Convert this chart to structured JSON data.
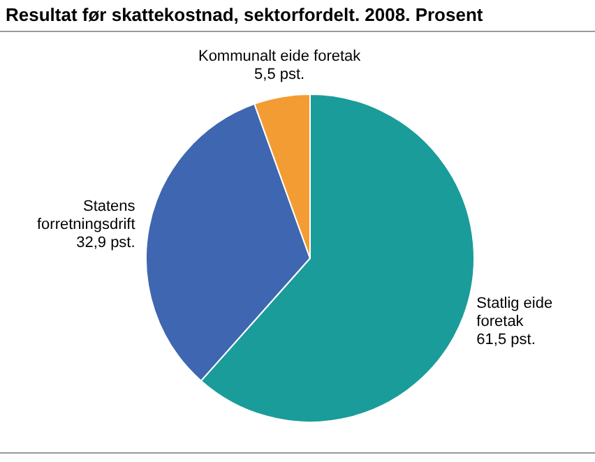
{
  "chart_data": {
    "type": "pie",
    "title": "Resultat før skattekostnad, sektorfordelt. 2008. Prosent",
    "categories": [
      "Statlig eide foretak",
      "Statens forretningsdrift",
      "Kommunalt eide foretak"
    ],
    "values": [
      61.5,
      32.9,
      5.5
    ],
    "colors": [
      "#1a9c9a",
      "#3f66b0",
      "#f39c33"
    ],
    "value_labels": [
      "61,5 pst.",
      "32,9 pst.",
      "5,5 pst."
    ],
    "legend": false
  }
}
